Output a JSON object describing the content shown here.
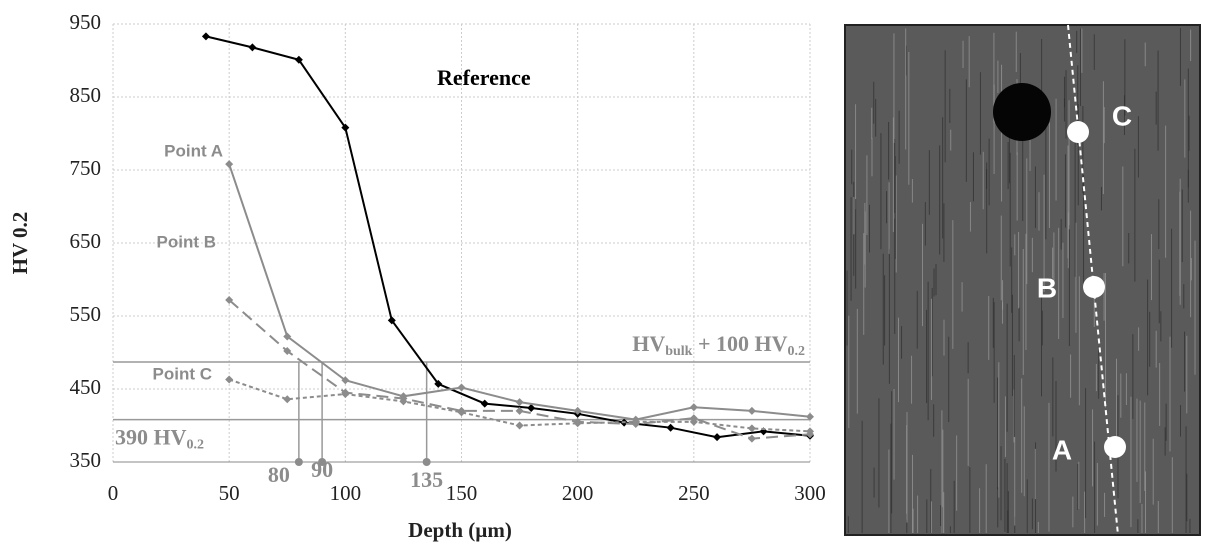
{
  "chart_data": {
    "type": "line",
    "x_label": "Depth (µm)",
    "y_label": "HV 0.2",
    "xlim": [
      0,
      300
    ],
    "xticks": [
      0,
      50,
      100,
      150,
      200,
      250,
      300
    ],
    "ylim": [
      350,
      950
    ],
    "yticks": [
      350,
      450,
      550,
      650,
      750,
      850,
      950
    ],
    "grid": true,
    "series": [
      {
        "name": "Reference",
        "color": "#000000",
        "style": "solid",
        "x": [
          40,
          60,
          80,
          100,
          120,
          140,
          160,
          180,
          200,
          220,
          240,
          260,
          280,
          300
        ],
        "values": [
          933,
          918,
          901,
          808,
          544,
          457,
          430,
          424,
          416,
          404,
          397,
          384,
          392,
          386
        ]
      },
      {
        "name": "Point A",
        "color": "#8c8c8c",
        "style": "solid",
        "x": [
          50,
          75,
          100,
          125,
          150,
          175,
          200,
          225,
          250,
          275,
          300
        ],
        "values": [
          758,
          522,
          462,
          440,
          452,
          432,
          420,
          408,
          425,
          420,
          412
        ]
      },
      {
        "name": "Point B",
        "color": "#8c8c8c",
        "style": "dashed",
        "x": [
          50,
          75,
          100,
          125,
          150,
          175,
          200,
          225,
          250,
          275,
          300
        ],
        "values": [
          572,
          502,
          445,
          437,
          420,
          420,
          405,
          402,
          410,
          382,
          388
        ]
      },
      {
        "name": "Point C",
        "color": "#8c8c8c",
        "style": "dotted",
        "x": [
          50,
          75,
          100,
          125,
          150,
          175,
          200,
          225,
          250,
          275,
          300
        ],
        "values": [
          463,
          436,
          443,
          433,
          418,
          400,
          403,
          405,
          405,
          396,
          392
        ]
      }
    ],
    "hlines": [
      {
        "value": 487,
        "label": [
          "HV",
          "bulk",
          " + 100 HV",
          "0.2"
        ]
      },
      {
        "value": 408,
        "label": [
          "390 HV",
          "0.2"
        ]
      }
    ],
    "x_markers": [
      80,
      90,
      135
    ],
    "image_points": [
      "A",
      "B",
      "C"
    ]
  }
}
